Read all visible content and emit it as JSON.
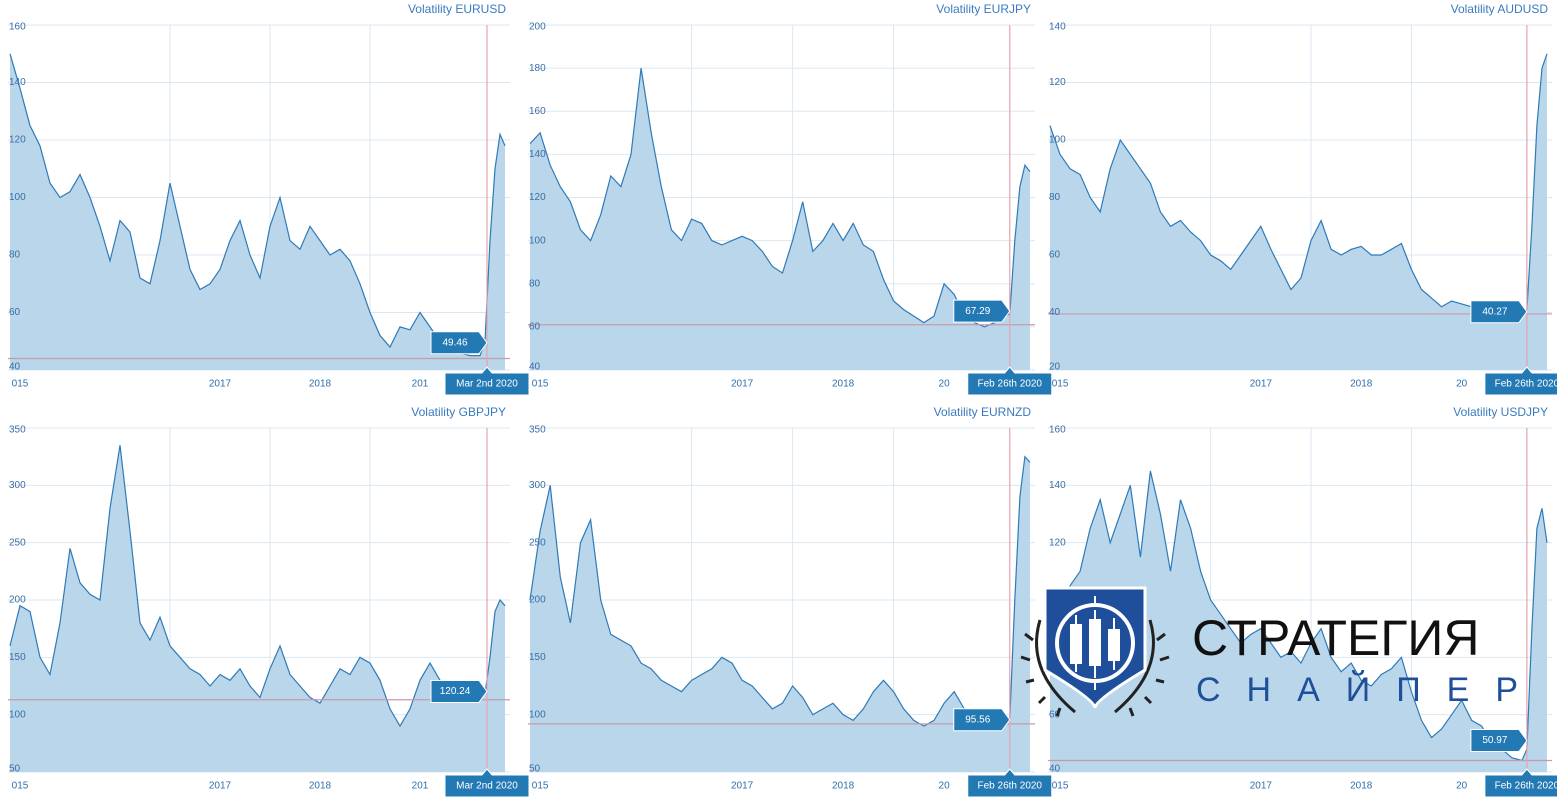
{
  "chart_data": [
    {
      "type": "area",
      "title": "Volatility EURUSD",
      "ylim": [
        40,
        160
      ],
      "yticks": [
        40,
        60,
        80,
        100,
        120,
        140,
        160
      ],
      "xlim": [
        2015.38,
        2020.4
      ],
      "xticks": [
        {
          "value": 2015,
          "label": "015"
        },
        2017,
        2018,
        {
          "value": 2019,
          "label": "201"
        }
      ],
      "threshold": 44,
      "crosshair": {
        "x": 2020.17,
        "label": "Mar 2nd 2020",
        "value": 49.46
      },
      "x": [
        2015.4,
        2015.5,
        2015.6,
        2015.7,
        2015.8,
        2015.9,
        2016.0,
        2016.1,
        2016.2,
        2016.3,
        2016.4,
        2016.5,
        2016.6,
        2016.7,
        2016.8,
        2016.9,
        2017.0,
        2017.1,
        2017.2,
        2017.3,
        2017.4,
        2017.5,
        2017.6,
        2017.7,
        2017.8,
        2017.9,
        2018.0,
        2018.1,
        2018.2,
        2018.3,
        2018.4,
        2018.5,
        2018.6,
        2018.7,
        2018.8,
        2018.9,
        2019.0,
        2019.1,
        2019.2,
        2019.3,
        2019.4,
        2019.5,
        2019.6,
        2019.7,
        2019.8,
        2019.9,
        2020.0,
        2020.1,
        2020.15,
        2020.2,
        2020.25,
        2020.3,
        2020.35
      ],
      "values": [
        150,
        138,
        125,
        118,
        105,
        100,
        102,
        108,
        100,
        90,
        78,
        92,
        88,
        72,
        70,
        85,
        105,
        90,
        75,
        68,
        70,
        75,
        85,
        92,
        80,
        72,
        90,
        100,
        85,
        82,
        90,
        85,
        80,
        82,
        78,
        70,
        60,
        52,
        48,
        55,
        54,
        60,
        55,
        50,
        47,
        46,
        45,
        45,
        50,
        85,
        110,
        122,
        118
      ]
    },
    {
      "type": "area",
      "title": "Volatility EURJPY",
      "ylim": [
        40,
        200
      ],
      "yticks": [
        40,
        60,
        80,
        100,
        120,
        140,
        160,
        180,
        200
      ],
      "xlim": [
        2015.38,
        2020.4
      ],
      "xticks": [
        {
          "value": 2015,
          "label": "015"
        },
        2017,
        2018,
        {
          "value": 2019,
          "label": "20"
        }
      ],
      "threshold": 61,
      "crosshair": {
        "x": 2020.15,
        "label": "Feb 26th 2020",
        "value": 67.29
      },
      "x": [
        2015.4,
        2015.5,
        2015.6,
        2015.7,
        2015.8,
        2015.9,
        2016.0,
        2016.1,
        2016.2,
        2016.3,
        2016.4,
        2016.5,
        2016.6,
        2016.7,
        2016.8,
        2016.9,
        2017.0,
        2017.1,
        2017.2,
        2017.3,
        2017.4,
        2017.5,
        2017.6,
        2017.7,
        2017.8,
        2017.9,
        2018.0,
        2018.1,
        2018.2,
        2018.3,
        2018.4,
        2018.5,
        2018.6,
        2018.7,
        2018.8,
        2018.9,
        2019.0,
        2019.1,
        2019.2,
        2019.3,
        2019.4,
        2019.5,
        2019.6,
        2019.7,
        2019.8,
        2019.9,
        2020.0,
        2020.1,
        2020.15,
        2020.2,
        2020.25,
        2020.3,
        2020.35
      ],
      "values": [
        145,
        150,
        135,
        125,
        118,
        105,
        100,
        112,
        130,
        125,
        140,
        180,
        150,
        125,
        105,
        100,
        110,
        108,
        100,
        98,
        100,
        102,
        100,
        95,
        88,
        85,
        100,
        118,
        95,
        100,
        108,
        100,
        108,
        98,
        95,
        82,
        72,
        68,
        65,
        62,
        65,
        80,
        75,
        65,
        62,
        60,
        62,
        65,
        66,
        100,
        125,
        135,
        132
      ]
    },
    {
      "type": "area",
      "title": "Volatility AUDUSD",
      "ylim": [
        20,
        140
      ],
      "yticks": [
        20,
        40,
        60,
        80,
        100,
        120,
        140
      ],
      "xlim": [
        2015.38,
        2020.4
      ],
      "xticks": [
        {
          "value": 2015,
          "label": "015"
        },
        2017,
        2018,
        {
          "value": 2019,
          "label": "20"
        }
      ],
      "threshold": 39.5,
      "crosshair": {
        "x": 2020.15,
        "label": "Feb 26th 2020",
        "value": 40.27
      },
      "x": [
        2015.4,
        2015.5,
        2015.6,
        2015.7,
        2015.8,
        2015.9,
        2016.0,
        2016.1,
        2016.2,
        2016.3,
        2016.4,
        2016.5,
        2016.6,
        2016.7,
        2016.8,
        2016.9,
        2017.0,
        2017.1,
        2017.2,
        2017.3,
        2017.4,
        2017.5,
        2017.6,
        2017.7,
        2017.8,
        2017.9,
        2018.0,
        2018.1,
        2018.2,
        2018.3,
        2018.4,
        2018.5,
        2018.6,
        2018.7,
        2018.8,
        2018.9,
        2019.0,
        2019.1,
        2019.2,
        2019.3,
        2019.4,
        2019.5,
        2019.6,
        2019.7,
        2019.8,
        2019.9,
        2020.0,
        2020.1,
        2020.15,
        2020.2,
        2020.25,
        2020.3,
        2020.35
      ],
      "values": [
        105,
        95,
        90,
        88,
        80,
        75,
        90,
        100,
        95,
        90,
        85,
        75,
        70,
        72,
        68,
        65,
        60,
        58,
        55,
        60,
        65,
        70,
        62,
        55,
        48,
        52,
        65,
        72,
        62,
        60,
        62,
        63,
        60,
        60,
        62,
        64,
        55,
        48,
        45,
        42,
        44,
        43,
        42,
        40,
        40,
        40,
        40,
        40,
        41,
        70,
        105,
        125,
        130
      ]
    },
    {
      "type": "area",
      "title": "Volatility GBPJPY",
      "ylim": [
        50,
        350
      ],
      "yticks": [
        50,
        100,
        150,
        200,
        250,
        300,
        350
      ],
      "xlim": [
        2015.38,
        2020.4
      ],
      "xticks": [
        {
          "value": 2015,
          "label": "015"
        },
        2017,
        2018,
        {
          "value": 2019,
          "label": "201"
        }
      ],
      "threshold": 113,
      "crosshair": {
        "x": 2020.17,
        "label": "Mar 2nd 2020",
        "value": 120.24
      },
      "x": [
        2015.4,
        2015.5,
        2015.6,
        2015.7,
        2015.8,
        2015.9,
        2016.0,
        2016.1,
        2016.2,
        2016.3,
        2016.4,
        2016.5,
        2016.6,
        2016.7,
        2016.8,
        2016.9,
        2017.0,
        2017.1,
        2017.2,
        2017.3,
        2017.4,
        2017.5,
        2017.6,
        2017.7,
        2017.8,
        2017.9,
        2018.0,
        2018.1,
        2018.2,
        2018.3,
        2018.4,
        2018.5,
        2018.6,
        2018.7,
        2018.8,
        2018.9,
        2019.0,
        2019.1,
        2019.2,
        2019.3,
        2019.4,
        2019.5,
        2019.6,
        2019.7,
        2019.8,
        2019.9,
        2020.0,
        2020.1,
        2020.15,
        2020.2,
        2020.25,
        2020.3,
        2020.35
      ],
      "values": [
        160,
        195,
        190,
        150,
        135,
        180,
        245,
        215,
        205,
        200,
        280,
        335,
        260,
        180,
        165,
        185,
        160,
        150,
        140,
        135,
        125,
        135,
        130,
        140,
        125,
        115,
        140,
        160,
        135,
        125,
        115,
        110,
        125,
        140,
        135,
        150,
        145,
        130,
        105,
        90,
        105,
        130,
        145,
        130,
        120,
        125,
        120,
        118,
        118,
        150,
        190,
        200,
        195
      ]
    },
    {
      "type": "area",
      "title": "Volatility EURNZD",
      "ylim": [
        50,
        350
      ],
      "yticks": [
        50,
        100,
        150,
        200,
        250,
        300,
        350
      ],
      "xlim": [
        2015.38,
        2020.4
      ],
      "xticks": [
        {
          "value": 2015,
          "label": "015"
        },
        2017,
        2018,
        {
          "value": 2019,
          "label": "20"
        }
      ],
      "threshold": 92,
      "crosshair": {
        "x": 2020.15,
        "label": "Feb 26th 2020",
        "value": 95.56
      },
      "x": [
        2015.4,
        2015.5,
        2015.6,
        2015.7,
        2015.8,
        2015.9,
        2016.0,
        2016.1,
        2016.2,
        2016.3,
        2016.4,
        2016.5,
        2016.6,
        2016.7,
        2016.8,
        2016.9,
        2017.0,
        2017.1,
        2017.2,
        2017.3,
        2017.4,
        2017.5,
        2017.6,
        2017.7,
        2017.8,
        2017.9,
        2018.0,
        2018.1,
        2018.2,
        2018.3,
        2018.4,
        2018.5,
        2018.6,
        2018.7,
        2018.8,
        2018.9,
        2019.0,
        2019.1,
        2019.2,
        2019.3,
        2019.4,
        2019.5,
        2019.6,
        2019.7,
        2019.8,
        2019.9,
        2020.0,
        2020.1,
        2020.15,
        2020.2,
        2020.25,
        2020.3,
        2020.35
      ],
      "values": [
        200,
        260,
        300,
        220,
        180,
        250,
        270,
        200,
        170,
        165,
        160,
        145,
        140,
        130,
        125,
        120,
        130,
        135,
        140,
        150,
        145,
        130,
        125,
        115,
        105,
        110,
        125,
        115,
        100,
        105,
        110,
        100,
        95,
        105,
        120,
        130,
        120,
        105,
        95,
        90,
        95,
        110,
        120,
        105,
        100,
        95,
        95,
        96,
        97,
        200,
        290,
        325,
        320
      ]
    },
    {
      "type": "area",
      "title": "Volatility USDJPY",
      "ylim": [
        40,
        160
      ],
      "yticks": [
        40,
        60,
        80,
        100,
        120,
        140,
        160
      ],
      "xlim": [
        2015.38,
        2020.4
      ],
      "xticks": [
        {
          "value": 2015,
          "label": "015"
        },
        2017,
        2018,
        {
          "value": 2019,
          "label": "20"
        }
      ],
      "threshold": 44,
      "crosshair": {
        "x": 2020.15,
        "label": "Feb 26th 2020",
        "value": 50.97
      },
      "x": [
        2015.4,
        2015.5,
        2015.6,
        2015.7,
        2015.8,
        2015.9,
        2016.0,
        2016.1,
        2016.2,
        2016.3,
        2016.4,
        2016.5,
        2016.6,
        2016.7,
        2016.8,
        2016.9,
        2017.0,
        2017.1,
        2017.2,
        2017.3,
        2017.4,
        2017.5,
        2017.6,
        2017.7,
        2017.8,
        2017.9,
        2018.0,
        2018.1,
        2018.2,
        2018.3,
        2018.4,
        2018.5,
        2018.6,
        2018.7,
        2018.8,
        2018.9,
        2019.0,
        2019.1,
        2019.2,
        2019.3,
        2019.4,
        2019.5,
        2019.6,
        2019.7,
        2019.8,
        2019.9,
        2020.0,
        2020.1,
        2020.15,
        2020.2,
        2020.25,
        2020.3,
        2020.35
      ],
      "values": [
        100,
        95,
        105,
        110,
        125,
        135,
        120,
        130,
        140,
        115,
        145,
        130,
        110,
        135,
        125,
        110,
        100,
        95,
        90,
        85,
        88,
        90,
        85,
        80,
        82,
        78,
        85,
        90,
        80,
        75,
        78,
        72,
        70,
        74,
        76,
        80,
        68,
        58,
        52,
        55,
        60,
        65,
        58,
        56,
        50,
        48,
        45,
        44,
        48,
        90,
        125,
        132,
        120
      ]
    }
  ],
  "watermark": {
    "title": "СТРАТЕГИЯ",
    "subtitle": "СНАЙПЕР"
  }
}
